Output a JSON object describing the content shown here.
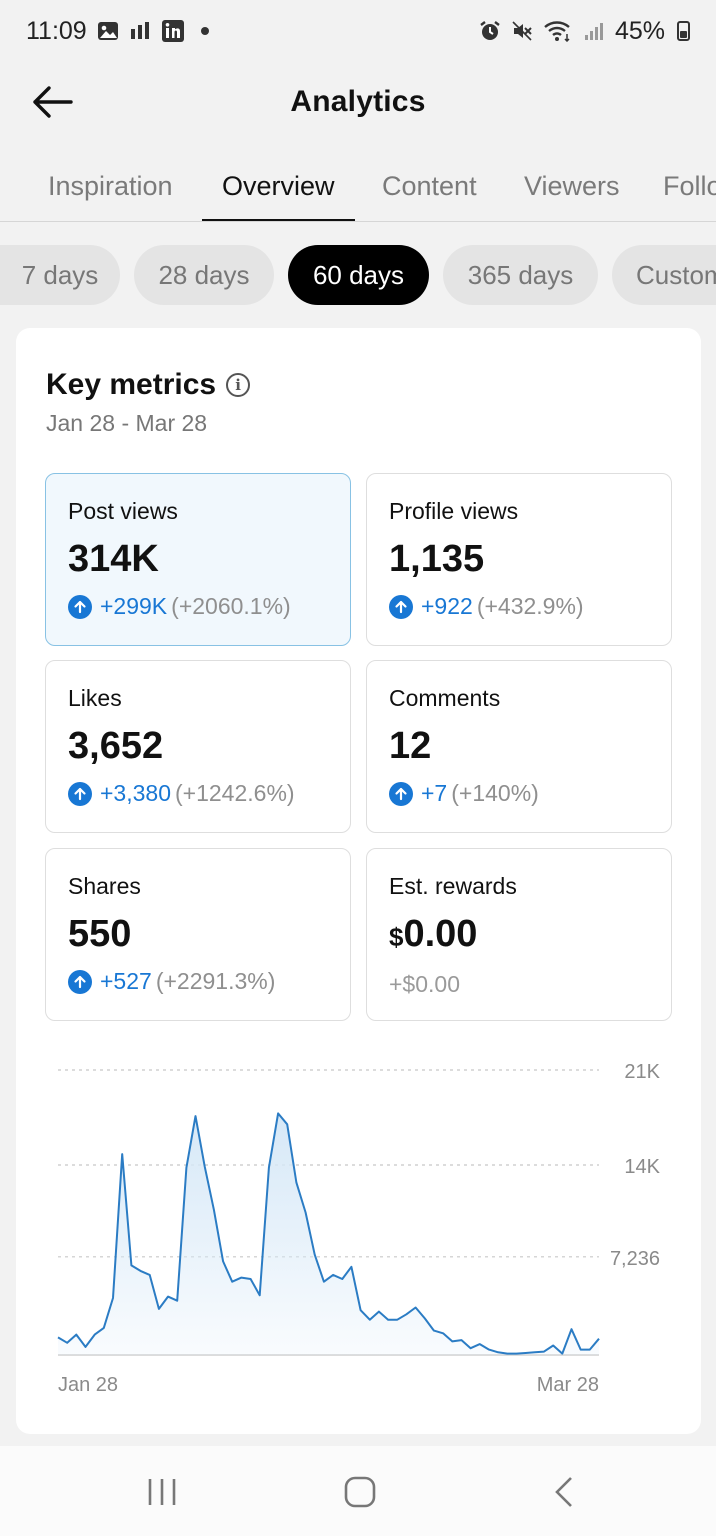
{
  "status_bar": {
    "time": "11:09",
    "battery": "45%",
    "left_icons": [
      "gallery-icon",
      "signal-bars-icon",
      "linkedin-icon",
      "notification-dot-icon"
    ],
    "right_icons": [
      "alarm-icon",
      "mute-icon",
      "wifi-icon",
      "cell-signal-icon",
      "battery-icon"
    ]
  },
  "header": {
    "title": "Analytics",
    "back_icon": "arrow-left-icon"
  },
  "tabs": [
    {
      "label": "Inspiration",
      "active": false
    },
    {
      "label": "Overview",
      "active": true
    },
    {
      "label": "Content",
      "active": false
    },
    {
      "label": "Viewers",
      "active": false
    },
    {
      "label": "Followers",
      "active": false
    }
  ],
  "ranges": [
    {
      "label": "7 days",
      "active": false
    },
    {
      "label": "28 days",
      "active": false
    },
    {
      "label": "60 days",
      "active": true
    },
    {
      "label": "365 days",
      "active": false
    },
    {
      "label": "Custom",
      "active": false
    }
  ],
  "key_metrics": {
    "title": "Key metrics",
    "date_range": "Jan 28 - Mar 28",
    "metrics": [
      {
        "label": "Post views",
        "value": "314K",
        "delta": "+299K",
        "pct": "(+2060.1%)",
        "selected": true
      },
      {
        "label": "Profile views",
        "value": "1,135",
        "delta": "+922",
        "pct": "(+432.9%)",
        "selected": false
      },
      {
        "label": "Likes",
        "value": "3,652",
        "delta": "+3,380",
        "pct": "(+1242.6%)",
        "selected": false
      },
      {
        "label": "Comments",
        "value": "12",
        "delta": "+7",
        "pct": "(+140%)",
        "selected": false
      },
      {
        "label": "Shares",
        "value": "550",
        "delta": "+527",
        "pct": "(+2291.3%)",
        "selected": false
      },
      {
        "label": "Est. rewards",
        "currency": "$",
        "value": "0.00",
        "delta_plain": "+$0.00",
        "selected": false
      }
    ]
  },
  "chart_data": {
    "type": "area",
    "series": [
      {
        "values": [
          1300,
          900,
          1500,
          600,
          1500,
          2000,
          4200,
          14800,
          6600,
          6200,
          5900,
          3400,
          4300,
          4000,
          13800,
          17600,
          13900,
          10700,
          6900,
          5400,
          5700,
          5600,
          4400,
          13800,
          17800,
          17000,
          12700,
          10500,
          7400,
          5400,
          5900,
          5600,
          6500,
          3300,
          2600,
          3200,
          2600,
          2600,
          3000,
          3500,
          2700,
          1800,
          1600,
          1000,
          1100,
          500,
          800,
          400,
          200,
          100,
          100,
          150,
          200,
          250,
          700,
          100,
          1900,
          400,
          400,
          1200
        ]
      }
    ],
    "x_tick_labels": [
      "Jan 28",
      "Mar 28"
    ],
    "y_tick_labels": [
      "21K",
      "14K",
      "7,236"
    ],
    "ylim": [
      0,
      21000
    ],
    "gridlines": "dashed",
    "line_color": "#2b7cc4",
    "fill_color": "#d6e8f7"
  },
  "nav_bar": {
    "recents_icon": "recents-icon",
    "home_icon": "home-icon",
    "back_icon": "nav-back-icon"
  },
  "colors": {
    "accent": "#1877d4",
    "selected_card_bg": "#f1f8fd",
    "active_chip": "#000000"
  }
}
